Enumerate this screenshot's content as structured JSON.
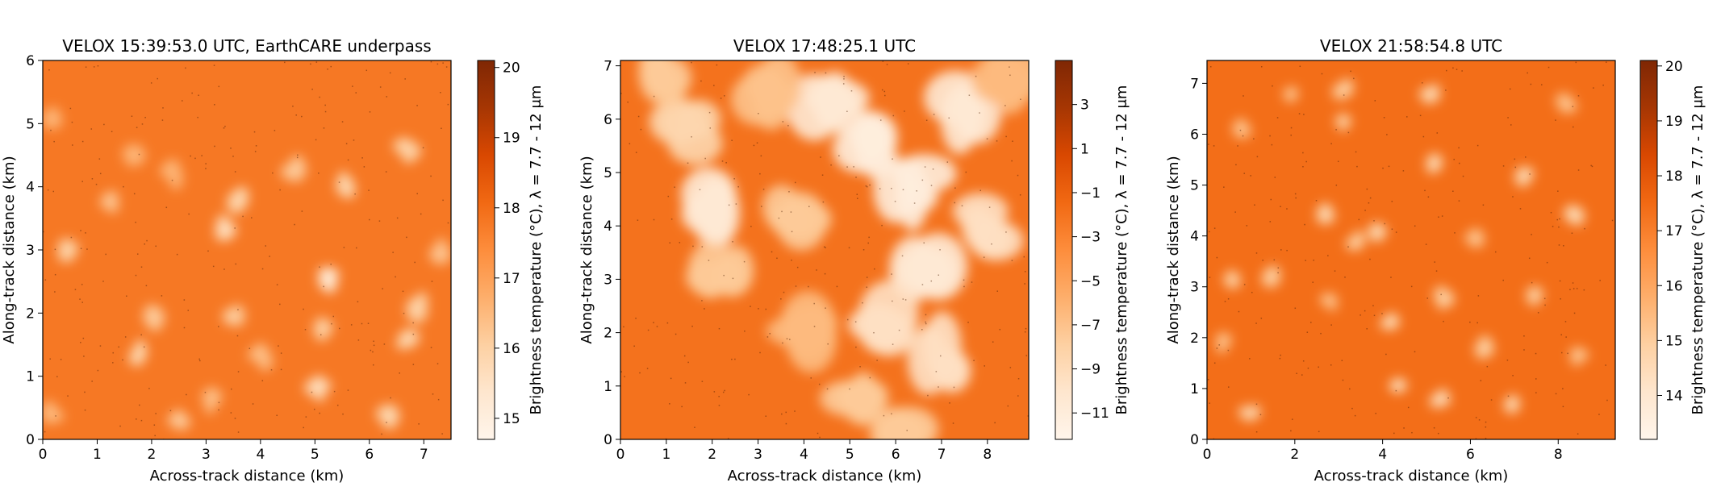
{
  "colors": {
    "colormap_oranges": [
      "#fff5eb",
      "#fee6ce",
      "#fdd0a2",
      "#fdae6b",
      "#fd8d3c",
      "#f16913",
      "#d94801",
      "#a63603",
      "#7f2704"
    ],
    "axis": "#000000",
    "background": "#ffffff"
  },
  "chart_data": [
    {
      "type": "heatmap",
      "title": "VELOX 15:39:53.0 UTC, EarthCARE underpass",
      "xlabel": "Across-track distance (km)",
      "ylabel": "Along-track distance (km)",
      "xlim": [
        0,
        7.5
      ],
      "ylim": [
        0,
        6
      ],
      "xticks": [
        0,
        1,
        2,
        3,
        4,
        5,
        6,
        7
      ],
      "yticks": [
        0,
        1,
        2,
        3,
        4,
        5,
        6
      ],
      "colorbar": {
        "label": "Brightness temperature (°C), λ = 7.7 - 12 μm",
        "range": [
          14.7,
          20.1
        ],
        "ticks": [
          15,
          16,
          17,
          18,
          19,
          20
        ]
      },
      "background_value": 17.8,
      "cool_patches": [
        {
          "x": 0.5,
          "y": 3.0,
          "value": 16.0
        },
        {
          "x": 1.2,
          "y": 3.75,
          "value": 16.3
        },
        {
          "x": 1.8,
          "y": 1.35,
          "value": 15.9
        },
        {
          "x": 2.5,
          "y": 0.3,
          "value": 16.2
        },
        {
          "x": 2.0,
          "y": 1.95,
          "value": 16.2
        },
        {
          "x": 3.4,
          "y": 3.35,
          "value": 15.7
        },
        {
          "x": 3.6,
          "y": 3.8,
          "value": 15.9
        },
        {
          "x": 3.5,
          "y": 1.9,
          "value": 16.1
        },
        {
          "x": 5.3,
          "y": 2.55,
          "value": 15.3
        },
        {
          "x": 5.6,
          "y": 4.0,
          "value": 15.9
        },
        {
          "x": 4.6,
          "y": 4.3,
          "value": 16.2
        },
        {
          "x": 5.1,
          "y": 1.8,
          "value": 16.1
        },
        {
          "x": 5.1,
          "y": 0.8,
          "value": 15.7
        },
        {
          "x": 6.4,
          "y": 0.35,
          "value": 15.9
        },
        {
          "x": 6.7,
          "y": 1.55,
          "value": 15.9
        },
        {
          "x": 6.9,
          "y": 2.1,
          "value": 16.0
        },
        {
          "x": 6.7,
          "y": 4.6,
          "value": 16.0
        },
        {
          "x": 1.7,
          "y": 4.5,
          "value": 16.6
        },
        {
          "x": 2.4,
          "y": 4.2,
          "value": 16.6
        },
        {
          "x": 3.1,
          "y": 0.6,
          "value": 16.4
        },
        {
          "x": 4.0,
          "y": 1.3,
          "value": 16.4
        },
        {
          "x": 7.3,
          "y": 3.0,
          "value": 16.3
        },
        {
          "x": 0.2,
          "y": 0.4,
          "value": 16.5
        },
        {
          "x": 0.2,
          "y": 5.1,
          "value": 16.6
        }
      ]
    },
    {
      "type": "heatmap",
      "title": "VELOX 17:48:25.1 UTC",
      "xlabel": "Across-track distance (km)",
      "ylabel": "Along-track distance (km)",
      "xlim": [
        0,
        8.9
      ],
      "ylim": [
        0,
        7.1
      ],
      "xticks": [
        0,
        1,
        2,
        3,
        4,
        5,
        6,
        7,
        8
      ],
      "yticks": [
        0,
        1,
        2,
        3,
        4,
        5,
        6,
        7
      ],
      "colorbar": {
        "label": "Brightness temperature (°C), λ = 7.7 - 12 μm",
        "range": [
          -12.2,
          5.0
        ],
        "ticks": [
          3,
          1,
          -1,
          -3,
          -5,
          -7,
          -9,
          -11
        ]
      },
      "background_value": -2.0,
      "cool_patches": [
        {
          "x": 2.1,
          "y": 4.5,
          "value": -10.5
        },
        {
          "x": 2.2,
          "y": 3.0,
          "value": -7.5
        },
        {
          "x": 1.4,
          "y": 5.8,
          "value": -8.5
        },
        {
          "x": 1.0,
          "y": 6.8,
          "value": -7.5
        },
        {
          "x": 4.5,
          "y": 6.2,
          "value": -10.5
        },
        {
          "x": 5.3,
          "y": 5.5,
          "value": -11.0
        },
        {
          "x": 6.3,
          "y": 4.8,
          "value": -11.0
        },
        {
          "x": 6.6,
          "y": 3.3,
          "value": -10.5
        },
        {
          "x": 5.6,
          "y": 2.2,
          "value": -9.5
        },
        {
          "x": 6.9,
          "y": 1.5,
          "value": -9.5
        },
        {
          "x": 7.6,
          "y": 6.2,
          "value": -10.5
        },
        {
          "x": 8.1,
          "y": 4.0,
          "value": -9.5
        },
        {
          "x": 3.7,
          "y": 4.2,
          "value": -7.5
        },
        {
          "x": 4.0,
          "y": 2.1,
          "value": -6.5
        },
        {
          "x": 5.1,
          "y": 0.6,
          "value": -7.5
        },
        {
          "x": 6.3,
          "y": 0.3,
          "value": -7.5
        },
        {
          "x": 3.3,
          "y": 6.6,
          "value": -7.0
        },
        {
          "x": 8.5,
          "y": 6.8,
          "value": -6.5
        }
      ]
    },
    {
      "type": "heatmap",
      "title": "VELOX 21:58:54.8 UTC",
      "xlabel": "Across-track distance (km)",
      "ylabel": "Along-track distance (km)",
      "xlim": [
        0,
        9.3
      ],
      "ylim": [
        0,
        7.45
      ],
      "xticks": [
        0,
        2,
        4,
        6,
        8
      ],
      "yticks": [
        0,
        1,
        2,
        3,
        4,
        5,
        6,
        7
      ],
      "colorbar": {
        "label": "Brightness temperature (°C), λ = 7.7 - 12 μm",
        "range": [
          13.2,
          20.1
        ],
        "ticks": [
          14,
          15,
          16,
          17,
          18,
          19,
          20
        ]
      },
      "background_value": 17.4,
      "cool_patches": [
        {
          "x": 3.1,
          "y": 6.9,
          "value": 15.0
        },
        {
          "x": 5.1,
          "y": 6.8,
          "value": 14.7
        },
        {
          "x": 3.1,
          "y": 6.2,
          "value": 15.0
        },
        {
          "x": 1.9,
          "y": 6.8,
          "value": 15.3
        },
        {
          "x": 5.1,
          "y": 5.4,
          "value": 14.7
        },
        {
          "x": 7.2,
          "y": 5.2,
          "value": 14.7
        },
        {
          "x": 8.2,
          "y": 6.6,
          "value": 15.3
        },
        {
          "x": 8.4,
          "y": 4.4,
          "value": 14.7
        },
        {
          "x": 2.7,
          "y": 4.4,
          "value": 14.7
        },
        {
          "x": 3.9,
          "y": 4.1,
          "value": 14.7
        },
        {
          "x": 3.4,
          "y": 3.9,
          "value": 15.0
        },
        {
          "x": 1.5,
          "y": 3.2,
          "value": 15.0
        },
        {
          "x": 0.6,
          "y": 3.1,
          "value": 15.0
        },
        {
          "x": 0.4,
          "y": 1.9,
          "value": 15.3
        },
        {
          "x": 4.2,
          "y": 2.3,
          "value": 14.7
        },
        {
          "x": 5.4,
          "y": 2.8,
          "value": 15.0
        },
        {
          "x": 6.3,
          "y": 1.8,
          "value": 15.0
        },
        {
          "x": 7.4,
          "y": 2.8,
          "value": 15.0
        },
        {
          "x": 4.4,
          "y": 1.1,
          "value": 14.5
        },
        {
          "x": 5.3,
          "y": 0.8,
          "value": 14.6
        },
        {
          "x": 1.0,
          "y": 0.5,
          "value": 14.8
        },
        {
          "x": 6.9,
          "y": 0.7,
          "value": 14.8
        },
        {
          "x": 8.5,
          "y": 1.6,
          "value": 15.2
        },
        {
          "x": 0.8,
          "y": 6.1,
          "value": 15.3
        },
        {
          "x": 6.1,
          "y": 3.9,
          "value": 15.3
        },
        {
          "x": 2.8,
          "y": 2.7,
          "value": 15.3
        }
      ]
    }
  ]
}
